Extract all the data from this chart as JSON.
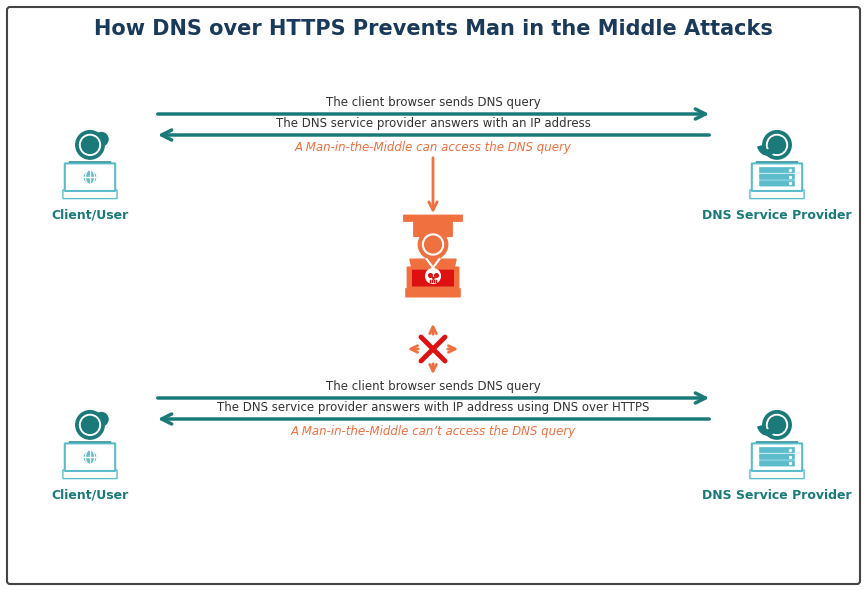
{
  "title": "How DNS over HTTPS Prevents Man in the Middle Attacks",
  "title_color": "#1a3a5c",
  "title_fontsize": 15,
  "bg_color": "#ffffff",
  "border_color": "#555555",
  "teal_dark": "#1a7a7a",
  "teal_light": "#5bbccc",
  "orange": "#f07040",
  "red": "#dd1111",
  "arrow_color": "#1a7a7a",
  "text_color": "#333333",
  "orange_text": "#f07040",
  "top_arrow1_text": "The client browser sends DNS query",
  "top_arrow2_text": "The DNS service provider answers with an IP address",
  "top_mitm_text": "A Man-in-the-Middle can access the DNS query",
  "bot_arrow1_text": "The client browser sends DNS query",
  "bot_arrow2_text": "The DNS service provider answers with IP address using DNS over HTTPS",
  "bot_mitm_text": "A Man-in-the-Middle can’t access the DNS query",
  "label_client": "Client/User",
  "label_dns": "DNS Service Provider"
}
